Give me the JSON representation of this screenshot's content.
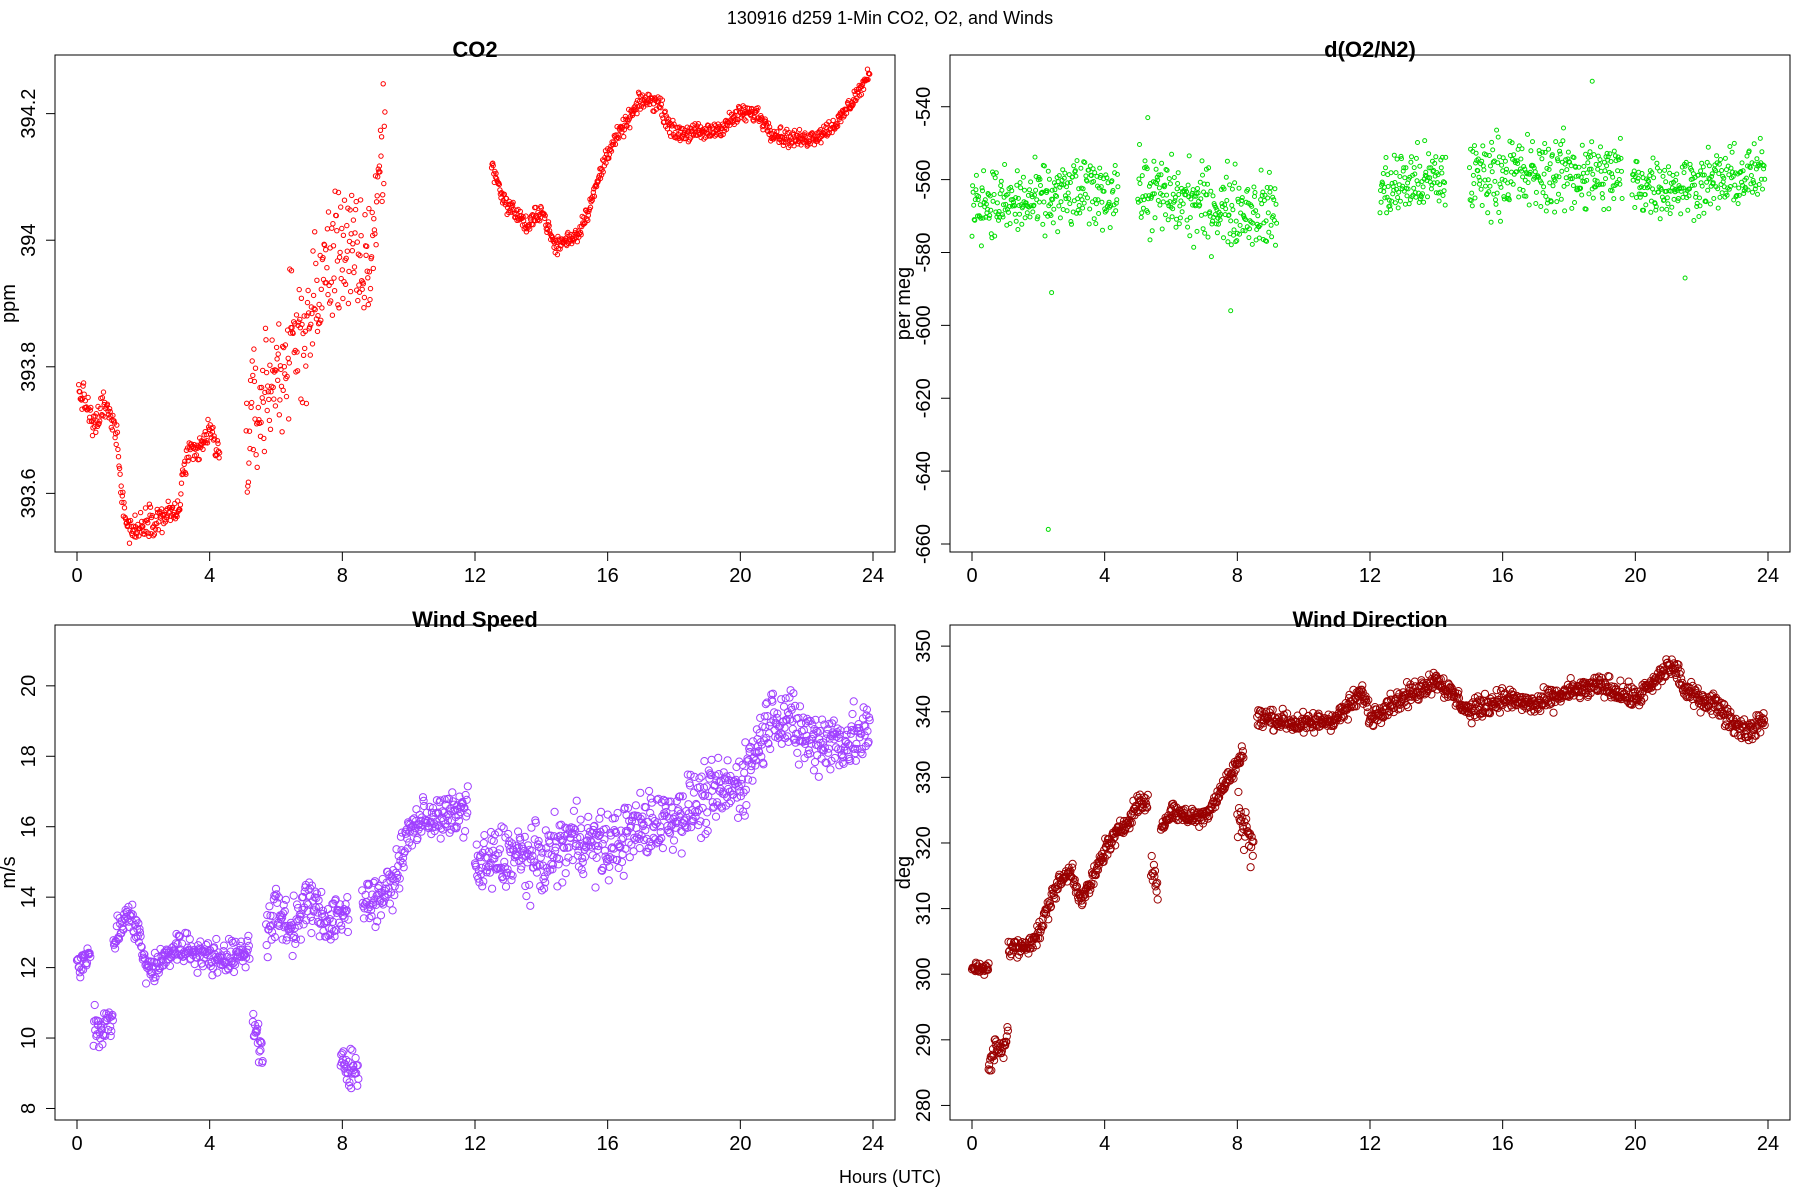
{
  "figure": {
    "main_title": "130916   d259   1-Min CO2, O2, and Winds",
    "xlabel": "Hours (UTC)"
  },
  "chart_data": [
    {
      "type": "scatter",
      "title": "CO2",
      "xlabel": "",
      "ylabel": "ppm",
      "xlim": [
        0,
        24
      ],
      "ylim": [
        393.52,
        394.28
      ],
      "xticks": [
        0,
        4,
        8,
        12,
        16,
        20,
        24
      ],
      "yticks": [
        393.6,
        393.8,
        394.0,
        394.2
      ],
      "grid": false,
      "color": "#ff0000",
      "point_size": 2.2,
      "segments": [
        {
          "x": [
            0.05,
            0.3,
            0.5,
            0.8,
            1.0,
            1.2,
            1.35,
            1.5,
            1.8,
            2.1,
            2.5,
            2.9,
            3.05,
            3.3,
            3.6,
            4.0,
            4.3
          ],
          "y": [
            393.76,
            393.74,
            393.7,
            393.74,
            393.72,
            393.7,
            393.6,
            393.55,
            393.54,
            393.56,
            393.56,
            393.57,
            393.57,
            393.66,
            393.66,
            393.7,
            393.66
          ],
          "noise": 0.02
        },
        {
          "x": [
            5.1,
            5.5,
            6.0,
            6.5,
            7.0,
            7.5,
            8.0,
            8.5,
            8.85,
            9.1,
            9.3
          ],
          "y": [
            393.68,
            393.74,
            393.79,
            393.83,
            393.87,
            393.95,
            394.0,
            393.95,
            393.97,
            394.1,
            394.18
          ],
          "noise": 0.09
        },
        {
          "x": [
            12.5,
            12.9,
            13.3,
            13.6,
            14.0,
            14.4,
            15.1,
            15.5,
            16.0,
            16.5,
            17.0,
            17.5,
            18.0,
            18.5,
            19.0,
            19.5,
            20.0,
            20.5,
            21.0,
            21.5,
            22.0,
            22.5,
            23.0,
            23.5,
            23.9
          ],
          "y": [
            394.12,
            394.06,
            394.04,
            394.02,
            394.05,
            393.99,
            394.01,
            394.06,
            394.14,
            394.18,
            394.22,
            394.22,
            394.17,
            394.17,
            394.17,
            394.18,
            394.2,
            394.2,
            394.17,
            394.16,
            394.16,
            394.17,
            394.19,
            394.23,
            394.26
          ],
          "noise": 0.012
        }
      ]
    },
    {
      "type": "scatter",
      "title": "d(O2/N2)",
      "xlabel": "",
      "ylabel": "per meg",
      "xlim": [
        0,
        24
      ],
      "ylim": [
        -660,
        -528
      ],
      "xticks": [
        0,
        4,
        8,
        12,
        16,
        20,
        24
      ],
      "yticks": [
        -660,
        -640,
        -620,
        -600,
        -580,
        -560,
        -540
      ],
      "grid": false,
      "color": "#00dd00",
      "point_size": 2.0,
      "segments": [
        {
          "x": [
            0.0,
            1.0,
            2.0,
            3.0,
            4.0,
            4.4
          ],
          "y": [
            -565,
            -567,
            -566,
            -564,
            -563,
            -563
          ],
          "noise": 8
        },
        {
          "x": [
            5.0,
            6.0,
            7.0,
            8.0,
            9.0,
            9.2
          ],
          "y": [
            -563,
            -565,
            -567,
            -568,
            -569,
            -569
          ],
          "noise": 9
        },
        {
          "x": [
            12.3,
            13.0,
            14.0,
            14.3
          ],
          "y": [
            -563,
            -561,
            -560,
            -560
          ],
          "noise": 8
        },
        {
          "x": [
            15.0,
            16.0,
            17.0,
            18.0,
            19.0,
            19.6
          ],
          "y": [
            -559,
            -558,
            -559,
            -558,
            -559,
            -559
          ],
          "noise": 9
        },
        {
          "x": [
            19.9,
            21.0,
            22.0,
            23.0,
            23.9
          ],
          "y": [
            -561,
            -562,
            -561,
            -560,
            -558
          ],
          "noise": 7
        }
      ],
      "outliers": {
        "x": [
          2.3,
          7.8,
          21.5,
          5.3,
          18.7,
          2.4
        ],
        "y": [
          -656,
          -596,
          -587,
          -543,
          -533,
          -591
        ]
      }
    },
    {
      "type": "scatter",
      "title": "Wind Speed",
      "xlabel": "",
      "ylabel": "m/s",
      "xlim": [
        0,
        24
      ],
      "ylim": [
        7.9,
        21.5
      ],
      "xticks": [
        0,
        4,
        8,
        12,
        16,
        20,
        24
      ],
      "yticks": [
        8,
        10,
        12,
        14,
        16,
        18,
        20
      ],
      "grid": false,
      "color": "#a040ff",
      "point_size": 3.6,
      "segments": [
        {
          "x": [
            0.0,
            0.4
          ],
          "y": [
            12.0,
            12.5
          ],
          "noise": 0.3
        },
        {
          "x": [
            0.5,
            0.9,
            1.1
          ],
          "y": [
            10.4,
            10.3,
            10.6
          ],
          "noise": 0.5
        },
        {
          "x": [
            1.1,
            1.5,
            1.8,
            2.1,
            2.5,
            3.0,
            3.5,
            4.0,
            4.5,
            5.0,
            5.2
          ],
          "y": [
            12.7,
            13.5,
            13.2,
            11.9,
            12.1,
            12.6,
            12.5,
            12.3,
            12.3,
            12.4,
            12.5
          ],
          "noise": 0.4
        },
        {
          "x": [
            5.3,
            5.5,
            5.6
          ],
          "y": [
            10.5,
            10.0,
            9.7
          ],
          "noise": 0.6
        },
        {
          "x": [
            5.7,
            6.0,
            6.5,
            7.0,
            7.5,
            8.0,
            8.2
          ],
          "y": [
            12.8,
            13.6,
            13.1,
            13.9,
            13.3,
            13.6,
            13.5
          ],
          "noise": 0.6
        },
        {
          "x": [
            7.95,
            8.2,
            8.5
          ],
          "y": [
            9.2,
            9.0,
            9.2
          ],
          "noise": 0.6
        },
        {
          "x": [
            8.6,
            9.0,
            9.5,
            10.0,
            10.5,
            11.0,
            11.5,
            11.8
          ],
          "y": [
            14.0,
            13.9,
            14.3,
            15.8,
            16.3,
            16.2,
            16.4,
            16.6
          ],
          "noise": 0.5
        },
        {
          "x": [
            12.0,
            13.0,
            14.0,
            15.0,
            16.0,
            17.0,
            18.0,
            19.0,
            20.0,
            21.0,
            22.0,
            23.0,
            23.9
          ],
          "y": [
            14.8,
            15.2,
            15.0,
            15.7,
            15.4,
            16.0,
            16.3,
            16.8,
            17.2,
            19.3,
            18.5,
            18.4,
            18.6
          ],
          "noise": 0.8
        }
      ]
    },
    {
      "type": "scatter",
      "title": "Wind Direction",
      "xlabel": "",
      "ylabel": "deg",
      "xlim": [
        0,
        24
      ],
      "ylim": [
        279,
        352
      ],
      "xticks": [
        0,
        4,
        8,
        12,
        16,
        20,
        24
      ],
      "yticks": [
        280,
        290,
        300,
        310,
        320,
        330,
        340,
        350
      ],
      "grid": false,
      "color": "#990000",
      "point_size": 3.6,
      "segments": [
        {
          "x": [
            0.0,
            0.5
          ],
          "y": [
            301,
            301
          ],
          "noise": 0.8
        },
        {
          "x": [
            0.5,
            0.7,
            0.9,
            1.1
          ],
          "y": [
            285,
            289,
            288,
            292
          ],
          "noise": 1.5
        },
        {
          "x": [
            1.1,
            1.5,
            2.0,
            2.5,
            3.0,
            3.3,
            3.7,
            4.0,
            4.5,
            5.0,
            5.3
          ],
          "y": [
            304,
            304,
            306,
            313,
            316,
            311,
            315,
            319,
            322,
            326,
            326
          ],
          "noise": 1.3
        },
        {
          "x": [
            5.4,
            5.6
          ],
          "y": [
            317,
            313
          ],
          "noise": 2.0
        },
        {
          "x": [
            5.7,
            6.0,
            6.5,
            7.0,
            7.5,
            8.0,
            8.2
          ],
          "y": [
            322,
            325,
            324,
            324,
            328,
            332,
            334
          ],
          "noise": 1.2
        },
        {
          "x": [
            8.0,
            8.3,
            8.5
          ],
          "y": [
            325,
            322,
            318
          ],
          "noise": 3.0
        },
        {
          "x": [
            8.6,
            9.0,
            10.0,
            11.0,
            11.8,
            12.0,
            12.5,
            13.0,
            14.0,
            15.0,
            16.0,
            17.0,
            18.0,
            19.0,
            20.0,
            20.5,
            21.0,
            21.3,
            21.5,
            22.0,
            22.5,
            23.0,
            23.5,
            23.9
          ],
          "y": [
            339,
            339,
            338,
            339,
            343,
            339,
            341,
            342,
            345,
            340,
            342,
            341,
            343,
            344,
            342,
            344,
            347,
            346,
            343,
            342,
            341,
            338,
            337,
            339
          ],
          "noise": 1.4
        }
      ]
    }
  ]
}
